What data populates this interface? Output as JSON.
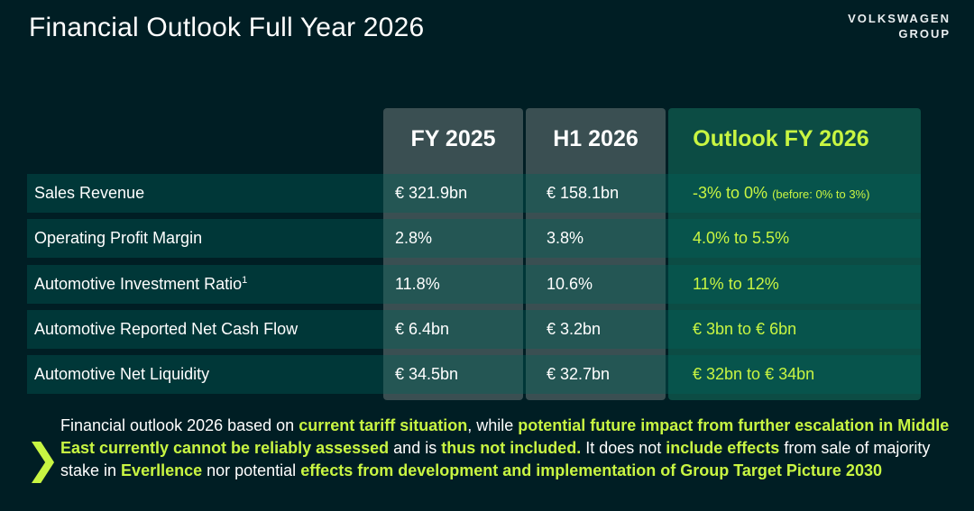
{
  "title": "Financial Outlook Full Year 2026",
  "logo": {
    "line1": "VOLKSWAGEN",
    "line2": "GROUP"
  },
  "columns": {
    "fy2025": "FY 2025",
    "h12026": "H1 2026",
    "outlook": "Outlook FY 2026"
  },
  "rows": [
    {
      "label": "Sales Revenue",
      "sup": "",
      "fy2025": "€ 321.9bn",
      "h12026": "€ 158.1bn",
      "outlook": "-3% to 0%",
      "outlook_note": "(before: 0% to 3%)"
    },
    {
      "label": "Operating Profit Margin",
      "sup": "",
      "fy2025": "2.8%",
      "h12026": "3.8%",
      "outlook": "4.0% to 5.5%",
      "outlook_note": ""
    },
    {
      "label": "Automotive Investment Ratio",
      "sup": "1",
      "fy2025": "11.8%",
      "h12026": "10.6%",
      "outlook": "11% to 12%",
      "outlook_note": ""
    },
    {
      "label": "Automotive Reported Net Cash Flow",
      "sup": "",
      "fy2025": "€ 6.4bn",
      "h12026": "€ 3.2bn",
      "outlook": "€ 3bn to € 6bn",
      "outlook_note": ""
    },
    {
      "label": "Automotive Net Liquidity",
      "sup": "",
      "fy2025": "€ 34.5bn",
      "h12026": "€ 32.7bn",
      "outlook": "€ 32bn to € 34bn",
      "outlook_note": ""
    }
  ],
  "footnote": {
    "chevron": "❯",
    "parts": [
      {
        "text": "Financial outlook 2026 based on ",
        "hl": false
      },
      {
        "text": "current tariff situation",
        "hl": true
      },
      {
        "text": ", while ",
        "hl": false
      },
      {
        "text": "potential future impact from further escalation in Middle East currently cannot be reliably assessed",
        "hl": true
      },
      {
        "text": " and is ",
        "hl": false
      },
      {
        "text": "thus not included.",
        "hl": true
      },
      {
        "text": " It does not ",
        "hl": false
      },
      {
        "text": "include effects",
        "hl": true
      },
      {
        "text": " from sale of majority stake in ",
        "hl": false
      },
      {
        "text": "Everllence",
        "hl": true
      },
      {
        "text": " nor potential ",
        "hl": false
      },
      {
        "text": "effects from development and implementation of Group Target Picture 2030",
        "hl": true
      }
    ]
  },
  "colors": {
    "background": "#001e24",
    "accent": "#c8f542",
    "outlook_column": "#0c4c44",
    "data_column": "#3a4f52"
  }
}
